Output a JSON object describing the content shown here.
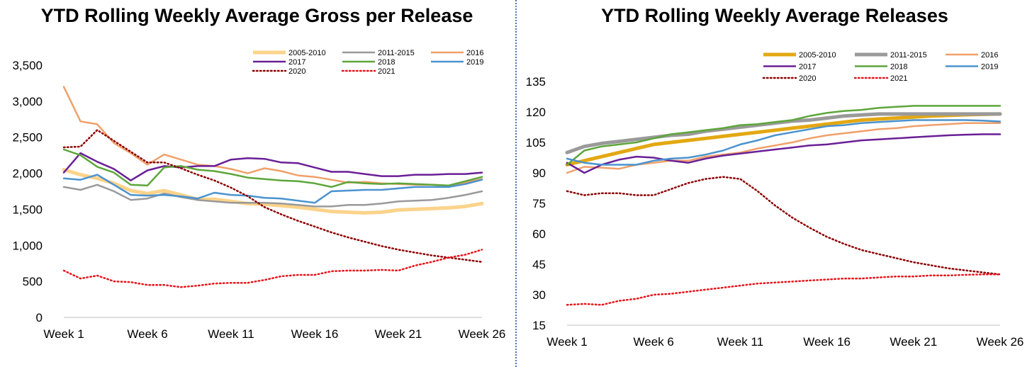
{
  "chart_data": [
    {
      "type": "line",
      "title": "YTD Rolling Weekly Average Gross per Release",
      "xlabel": "",
      "ylabel": "",
      "x": [
        "Week 1",
        "Week 2",
        "Week 3",
        "Week 4",
        "Week 5",
        "Week 6",
        "Week 7",
        "Week 8",
        "Week 9",
        "Week 10",
        "Week 11",
        "Week 12",
        "Week 13",
        "Week 14",
        "Week 15",
        "Week 16",
        "Week 17",
        "Week 18",
        "Week 19",
        "Week 20",
        "Week 21",
        "Week 22",
        "Week 23",
        "Week 24",
        "Week 25",
        "Week 26"
      ],
      "x_tick_labels": [
        "Week 1",
        "Week 6",
        "Week 11",
        "Week 16",
        "Week 21",
        "Week 26"
      ],
      "y_tick_labels": [
        "0",
        "500",
        "1,000",
        "1,500",
        "2,000",
        "2,500",
        "3,000",
        "3,500"
      ],
      "ylim": [
        0,
        3500
      ],
      "grid": false,
      "legend_position": "top-right",
      "series": [
        {
          "name": "2005-2010",
          "color": "#fbd38a",
          "width": 5,
          "dash": "solid",
          "values": [
            2050,
            1980,
            1930,
            1860,
            1760,
            1720,
            1760,
            1700,
            1640,
            1640,
            1610,
            1580,
            1570,
            1550,
            1530,
            1500,
            1470,
            1460,
            1450,
            1460,
            1490,
            1500,
            1510,
            1520,
            1540,
            1580
          ]
        },
        {
          "name": "2011-2015",
          "color": "#9a9a9a",
          "width": 2.5,
          "dash": "solid",
          "values": [
            1810,
            1770,
            1840,
            1750,
            1630,
            1650,
            1720,
            1670,
            1630,
            1610,
            1590,
            1590,
            1590,
            1580,
            1560,
            1540,
            1540,
            1560,
            1560,
            1580,
            1610,
            1620,
            1630,
            1660,
            1700,
            1750
          ]
        },
        {
          "name": "2016",
          "color": "#f0a06a",
          "width": 2.5,
          "dash": "solid",
          "values": [
            3200,
            2720,
            2680,
            2420,
            2280,
            2120,
            2260,
            2190,
            2120,
            2100,
            2060,
            2000,
            2070,
            2030,
            1970,
            1950,
            1910,
            1870,
            1880,
            1860,
            1850,
            1840,
            1840,
            1830,
            1870,
            1920
          ]
        },
        {
          "name": "2017",
          "color": "#6a1f96",
          "width": 2.5,
          "dash": "solid",
          "values": [
            2010,
            2280,
            2160,
            2060,
            1900,
            2040,
            2100,
            2080,
            2100,
            2100,
            2190,
            2210,
            2200,
            2150,
            2140,
            2080,
            2020,
            2020,
            1990,
            1960,
            1960,
            1980,
            1980,
            1990,
            1990,
            2010
          ]
        },
        {
          "name": "2018",
          "color": "#5da63a",
          "width": 2.5,
          "dash": "solid",
          "values": [
            2330,
            2250,
            2090,
            2010,
            1840,
            1830,
            2080,
            2100,
            2050,
            2030,
            1990,
            1940,
            1920,
            1900,
            1890,
            1860,
            1810,
            1880,
            1860,
            1850,
            1860,
            1850,
            1840,
            1830,
            1890,
            1950
          ]
        },
        {
          "name": "2019",
          "color": "#4b93cf",
          "width": 2.5,
          "dash": "solid",
          "values": [
            1930,
            1910,
            1980,
            1840,
            1700,
            1690,
            1700,
            1680,
            1650,
            1730,
            1700,
            1690,
            1660,
            1650,
            1620,
            1590,
            1750,
            1760,
            1770,
            1770,
            1790,
            1810,
            1810,
            1810,
            1850,
            1910
          ]
        },
        {
          "name": "2020",
          "color": "#8b0000",
          "width": 2.5,
          "dash": "dot",
          "values": [
            2360,
            2370,
            2600,
            2450,
            2300,
            2150,
            2150,
            2070,
            1980,
            1900,
            1800,
            1680,
            1530,
            1430,
            1340,
            1260,
            1180,
            1110,
            1050,
            990,
            940,
            900,
            860,
            830,
            800,
            770
          ]
        },
        {
          "name": "2021",
          "color": "#e8141b",
          "width": 2.5,
          "dash": "dot",
          "values": [
            650,
            540,
            580,
            500,
            490,
            450,
            450,
            420,
            440,
            470,
            480,
            480,
            520,
            570,
            590,
            590,
            640,
            650,
            650,
            660,
            650,
            720,
            770,
            830,
            870,
            940
          ]
        }
      ]
    },
    {
      "type": "line",
      "title": "YTD Rolling Weekly Average Releases",
      "xlabel": "",
      "ylabel": "",
      "x": [
        "Week 1",
        "Week 2",
        "Week 3",
        "Week 4",
        "Week 5",
        "Week 6",
        "Week 7",
        "Week 8",
        "Week 9",
        "Week 10",
        "Week 11",
        "Week 12",
        "Week 13",
        "Week 14",
        "Week 15",
        "Week 16",
        "Week 17",
        "Week 18",
        "Week 19",
        "Week 20",
        "Week 21",
        "Week 22",
        "Week 23",
        "Week 24",
        "Week 25",
        "Week 26"
      ],
      "x_tick_labels": [
        "Week 1",
        "Week 6",
        "Week 11",
        "Week 16",
        "Week 21",
        "Week 26"
      ],
      "y_tick_labels": [
        "15",
        "30",
        "45",
        "60",
        "75",
        "90",
        "105",
        "120",
        "135"
      ],
      "ylim": [
        15,
        135
      ],
      "grid": false,
      "legend_position": "top-right",
      "series": [
        {
          "name": "2005-2010",
          "color": "#e3a812",
          "width": 5,
          "dash": "solid",
          "values": [
            94,
            96,
            98,
            100,
            102,
            104,
            105,
            106,
            107,
            108,
            109,
            110,
            111,
            112,
            113,
            114,
            115,
            116,
            116.5,
            117,
            117.5,
            118,
            118.3,
            118.6,
            118.8,
            119
          ]
        },
        {
          "name": "2011-2015",
          "color": "#9a9a9a",
          "width": 5,
          "dash": "solid",
          "values": [
            100,
            103,
            104.5,
            105.5,
            106.5,
            107.5,
            108.5,
            109,
            110.5,
            111.5,
            112.5,
            113.5,
            114.5,
            115.5,
            116,
            117,
            118,
            118.5,
            119,
            119,
            119,
            119,
            119,
            119,
            119,
            119
          ]
        },
        {
          "name": "2016",
          "color": "#f0a06a",
          "width": 2.5,
          "dash": "solid",
          "values": [
            90,
            93,
            92.5,
            92,
            94,
            95,
            96,
            96,
            98,
            99,
            100,
            102,
            103.5,
            105,
            107,
            108.5,
            109.5,
            110.5,
            111.5,
            112,
            113,
            113.5,
            114,
            114.5,
            114.5,
            114.5
          ]
        },
        {
          "name": "2017",
          "color": "#6a1f96",
          "width": 2.5,
          "dash": "solid",
          "values": [
            95,
            90,
            94,
            96.5,
            98,
            97.5,
            96,
            95,
            97,
            98.5,
            99.5,
            100.5,
            101.5,
            102.5,
            103.5,
            104,
            105,
            106,
            106.5,
            107,
            107.5,
            108,
            108.5,
            108.8,
            109,
            109
          ]
        },
        {
          "name": "2018",
          "color": "#5da63a",
          "width": 2.5,
          "dash": "solid",
          "values": [
            94,
            101,
            103,
            104,
            105,
            107,
            109,
            110,
            111,
            112,
            113.5,
            114,
            115,
            116,
            118,
            119.5,
            120.5,
            121,
            122,
            122.5,
            123,
            123,
            123,
            123,
            123,
            123
          ]
        },
        {
          "name": "2019",
          "color": "#4b93cf",
          "width": 2.5,
          "dash": "solid",
          "values": [
            97,
            95,
            94,
            94,
            94,
            96,
            97,
            97.5,
            99,
            101,
            104,
            106,
            108.5,
            110,
            111.5,
            113,
            113.5,
            114.5,
            115,
            115.5,
            116,
            116,
            116,
            116,
            115.7,
            115.3
          ]
        },
        {
          "name": "2020",
          "color": "#8b0000",
          "width": 2.5,
          "dash": "dot",
          "values": [
            81,
            79,
            80,
            80,
            79,
            79,
            82,
            85,
            87,
            88,
            87,
            81,
            74,
            68,
            63,
            58.5,
            55,
            52,
            50,
            48,
            46,
            44.5,
            43,
            42,
            41,
            40
          ]
        },
        {
          "name": "2021",
          "color": "#e8141b",
          "width": 2.5,
          "dash": "dot",
          "values": [
            25,
            25.5,
            25,
            27,
            28,
            30,
            30.5,
            31.5,
            32.5,
            33.5,
            34.5,
            35.5,
            36,
            36.5,
            37,
            37.5,
            38,
            38,
            38.5,
            39,
            39,
            39.5,
            39.5,
            39.8,
            40,
            40
          ]
        }
      ]
    }
  ]
}
